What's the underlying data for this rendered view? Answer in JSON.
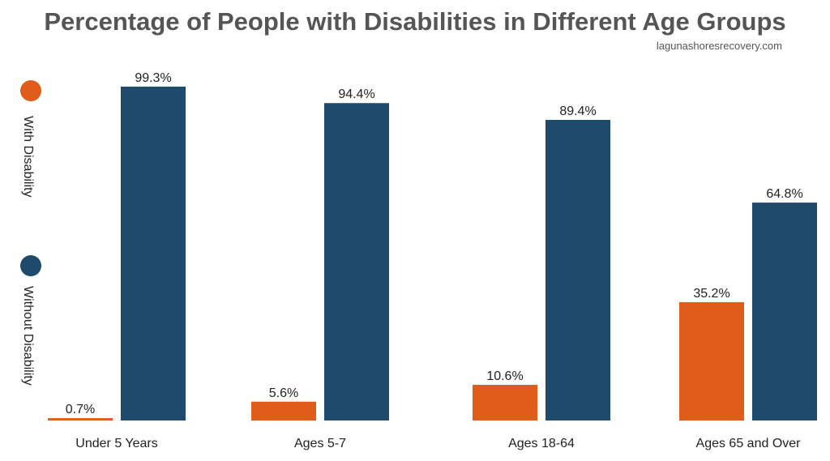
{
  "chart_data": {
    "type": "bar",
    "title": "Percentage of People with Disabilities in Different Age Groups",
    "source": "lagunashoresrecovery.com",
    "categories": [
      "Under 5 Years",
      "Ages 5-7",
      "Ages 18-64",
      "Ages 65 and Over"
    ],
    "series": [
      {
        "name": "With Disability",
        "color": "#E05C1A",
        "values": [
          0.7,
          5.6,
          10.6,
          35.2
        ],
        "labels": [
          "0.7%",
          "5.6%",
          "10.6%",
          "35.2%"
        ]
      },
      {
        "name": "Without Disability",
        "color": "#1E4A6B",
        "values": [
          99.3,
          94.4,
          89.4,
          64.8
        ],
        "labels": [
          "99.3%",
          "94.4%",
          "89.4%",
          "64.8%"
        ]
      }
    ],
    "ylim": [
      0,
      100
    ],
    "xlabel": "",
    "ylabel": "",
    "grid": false,
    "legend_position": "left, vertical"
  }
}
